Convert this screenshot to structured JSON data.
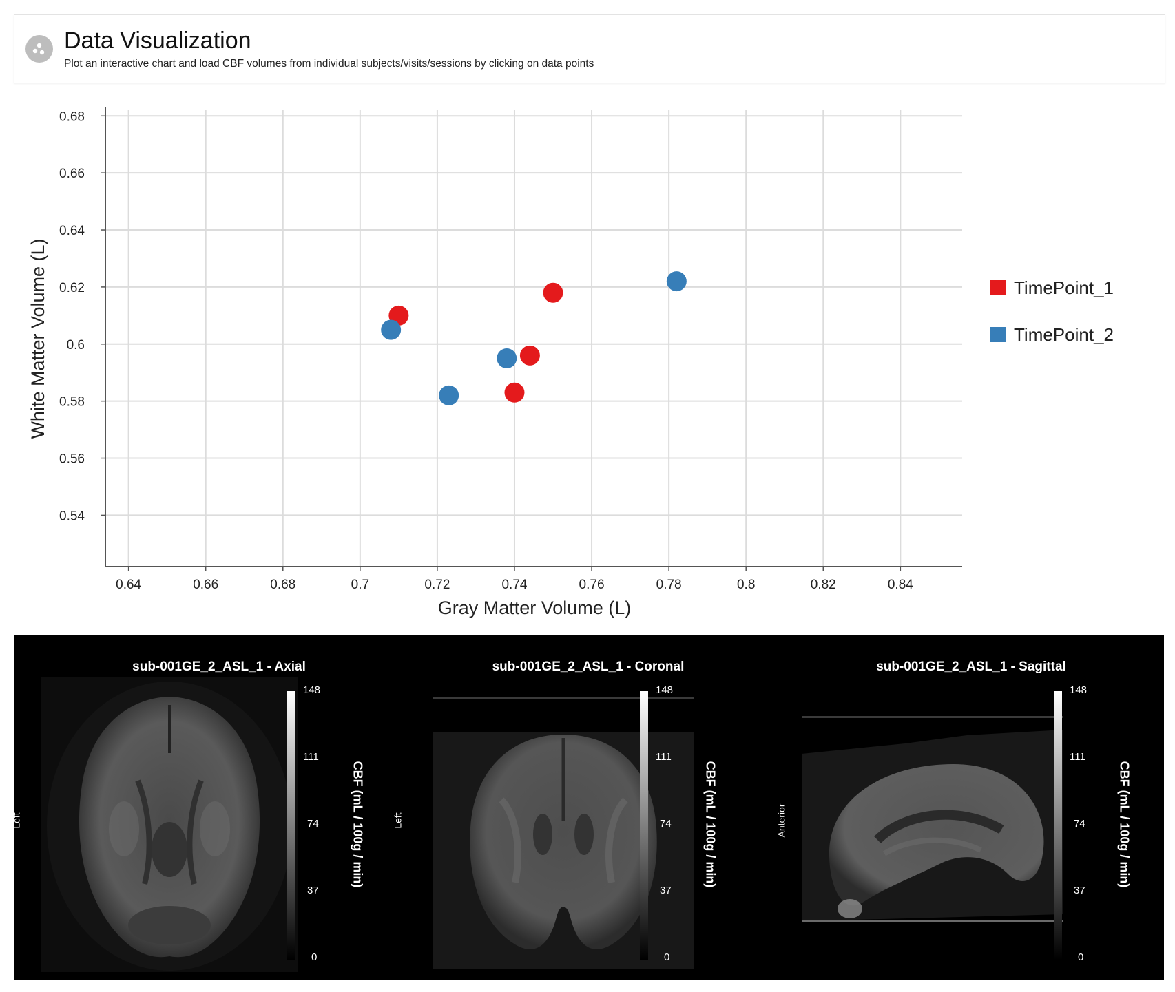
{
  "header": {
    "title": "Data Visualization",
    "subtitle": "Plot an interactive chart and load CBF volumes from individual subjects/visits/sessions by clicking on data points",
    "icon": "scatter-dots-icon"
  },
  "chart_data": {
    "type": "scatter",
    "xlabel": "Gray Matter Volume (L)",
    "ylabel": "White Matter Volume (L)",
    "xlim": [
      0.634,
      0.856
    ],
    "ylim": [
      0.522,
      0.682
    ],
    "x_ticks": [
      "0.64",
      "0.66",
      "0.68",
      "0.7",
      "0.72",
      "0.74",
      "0.76",
      "0.78",
      "0.8",
      "0.82",
      "0.84"
    ],
    "y_ticks": [
      "0.68",
      "0.66",
      "0.64",
      "0.62",
      "0.6",
      "0.58",
      "0.56",
      "0.54"
    ],
    "grid": true,
    "legend_position": "right",
    "series": [
      {
        "name": "TimePoint_1",
        "color": "#e41a1c",
        "points": [
          {
            "x": 0.71,
            "y": 0.61
          },
          {
            "x": 0.75,
            "y": 0.618
          },
          {
            "x": 0.744,
            "y": 0.596
          },
          {
            "x": 0.74,
            "y": 0.583
          }
        ]
      },
      {
        "name": "TimePoint_2",
        "color": "#377eb8",
        "points": [
          {
            "x": 0.708,
            "y": 0.605
          },
          {
            "x": 0.782,
            "y": 0.622
          },
          {
            "x": 0.738,
            "y": 0.595
          },
          {
            "x": 0.723,
            "y": 0.582
          }
        ]
      }
    ]
  },
  "viewer": {
    "panels": [
      {
        "title": "sub-001GE_2_ASL_1 - Axial",
        "orientation": "Left",
        "view": "axial"
      },
      {
        "title": "sub-001GE_2_ASL_1 - Coronal",
        "orientation": "Left",
        "view": "coronal"
      },
      {
        "title": "sub-001GE_2_ASL_1 - Sagittal",
        "orientation": "Anterior",
        "view": "sagittal"
      }
    ],
    "colorbar": {
      "ticks": [
        "148",
        "111",
        "74",
        "37",
        "0"
      ],
      "label": "CBF (mL / 100g / min)"
    }
  }
}
